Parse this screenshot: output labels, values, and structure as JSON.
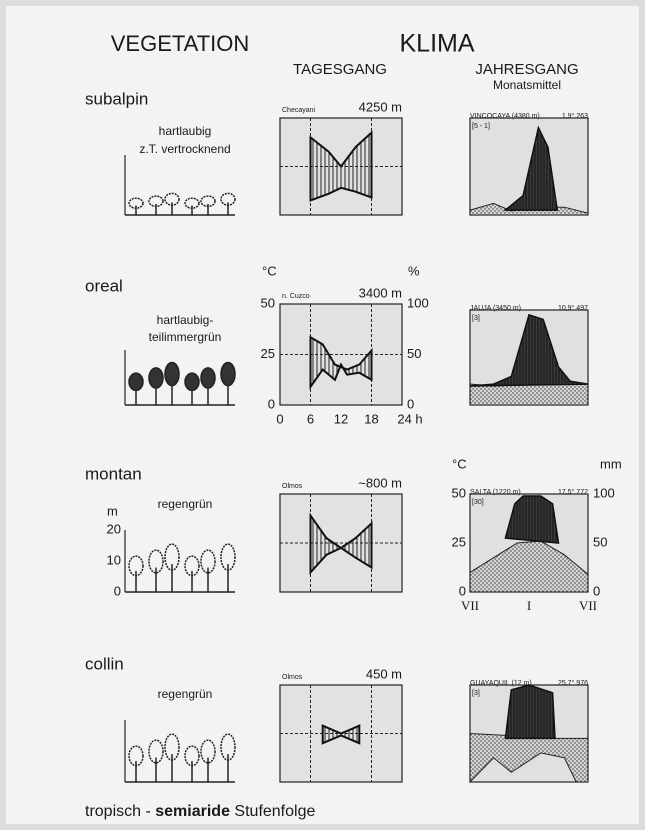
{
  "header": {
    "vegetation": "VEGETATION",
    "klima": "KLIMA",
    "tagesgang": "TAGESGANG",
    "jahresgang": "JAHRESGANG",
    "monatsmittel": "Monatsmittel"
  },
  "rows": [
    {
      "zone": "subalpin",
      "vegetation": [
        "hartlaubig",
        "z.T. vertrocknend"
      ],
      "day_station": "Checayani",
      "day_elevation": "4250 m",
      "year_station": "VINCOCAYA (4380 m)",
      "year_code": "[5 - 1]",
      "year_stats": "1,9° 263"
    },
    {
      "zone": "oreal",
      "vegetation": [
        "hartlaubig-",
        "teilimmergrün"
      ],
      "day_station": "n. Cuzco",
      "day_elevation": "3400 m",
      "year_station": "JAUJA (3450 m)",
      "year_code": "[3]",
      "year_stats": "10,9° 497"
    },
    {
      "zone": "montan",
      "vegetation": [
        "regengrün"
      ],
      "day_station": "Olmos",
      "day_elevation": "~800 m",
      "year_station": "SALTA (1220 m)",
      "year_code": "[30]",
      "year_stats": "17,5° 772"
    },
    {
      "zone": "collin",
      "vegetation": [
        "regengrün"
      ],
      "day_station": "Olmos",
      "day_elevation": "450 m",
      "year_station": "GUAYAQUIL (12 m)",
      "year_code": "[3]",
      "year_stats": "25,7° 976"
    }
  ],
  "day_axes": {
    "left_unit": "°C",
    "right_unit": "%",
    "left_ticks": [
      "50",
      "25",
      "0"
    ],
    "right_ticks": [
      "100",
      "50",
      "0"
    ],
    "x_ticks": [
      "0",
      "6",
      "12",
      "18",
      "24 h"
    ]
  },
  "height_axis": {
    "unit": "m",
    "ticks": [
      "20",
      "10",
      "0"
    ]
  },
  "year_axes": {
    "left_unit": "°C",
    "right_unit": "mm",
    "left_ticks": [
      "50",
      "25",
      "0"
    ],
    "right_ticks": [
      "100",
      "50",
      "0"
    ],
    "x_ticks": [
      "VII",
      "I",
      "VII"
    ]
  },
  "footer": {
    "prefix": "tropisch -",
    "emphasis": "semiaride",
    "suffix": "Stufenfolge"
  }
}
